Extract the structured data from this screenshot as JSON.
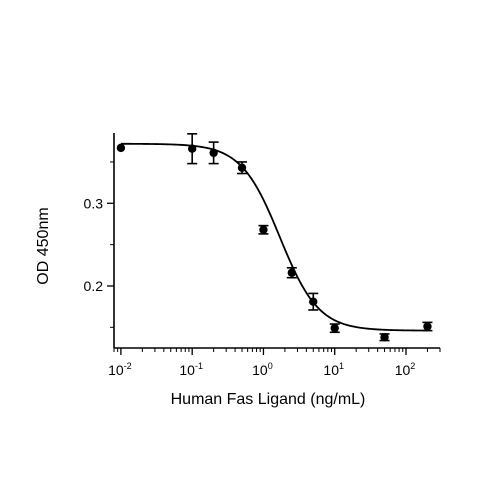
{
  "chart_data": {
    "type": "scatter",
    "title": "",
    "xlabel": "Human Fas Ligand (ng/mL)",
    "ylabel": "OD 450nm",
    "x_scale": "log",
    "xlim": [
      0.008,
      300
    ],
    "ylim": [
      0.125,
      0.385
    ],
    "x_ticks": [
      {
        "value": 0.01,
        "base": "10",
        "exp": "-2"
      },
      {
        "value": 0.1,
        "base": "10",
        "exp": "-1"
      },
      {
        "value": 1,
        "base": "10",
        "exp": "0"
      },
      {
        "value": 10,
        "base": "10",
        "exp": "1"
      },
      {
        "value": 100,
        "base": "10",
        "exp": "2"
      }
    ],
    "y_ticks": [
      {
        "value": 0.2,
        "label": "0.2"
      },
      {
        "value": 0.3,
        "label": "0.3"
      }
    ],
    "grid": false,
    "legend": "none",
    "series": [
      {
        "points": [
          {
            "x": 0.01,
            "y": 0.367,
            "err": 0.0
          },
          {
            "x": 0.1,
            "y": 0.366,
            "err": 0.018
          },
          {
            "x": 0.2,
            "y": 0.361,
            "err": 0.013
          },
          {
            "x": 0.5,
            "y": 0.343,
            "err": 0.007
          },
          {
            "x": 1,
            "y": 0.268,
            "err": 0.005
          },
          {
            "x": 2.5,
            "y": 0.216,
            "err": 0.006
          },
          {
            "x": 5,
            "y": 0.181,
            "err": 0.01
          },
          {
            "x": 10,
            "y": 0.149,
            "err": 0.005
          },
          {
            "x": 50,
            "y": 0.138,
            "err": 0.004
          },
          {
            "x": 200,
            "y": 0.151,
            "err": 0.005
          }
        ],
        "fit": {
          "model": "4PL",
          "top": 0.372,
          "bottom": 0.146,
          "ec50": 1.7,
          "hill": 1.6
        }
      }
    ]
  }
}
